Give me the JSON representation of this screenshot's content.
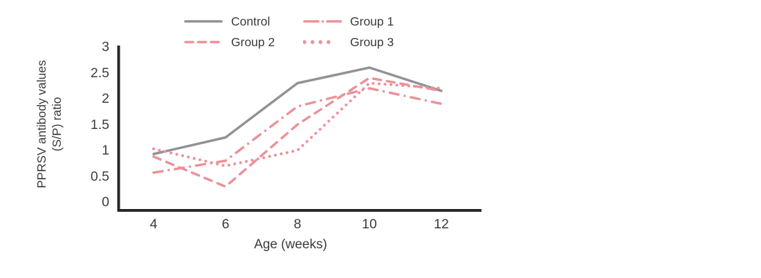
{
  "chart_data": {
    "type": "line",
    "x": [
      4,
      6,
      8,
      10,
      12
    ],
    "xtick_labels": [
      "4",
      "6",
      "8",
      "10",
      "12"
    ],
    "yticks": [
      0,
      0.5,
      1,
      1.5,
      2,
      2.5,
      3
    ],
    "ytick_labels": [
      "0",
      "0.5",
      "1",
      "1.5",
      "2",
      "2.5",
      "3"
    ],
    "ylim": [
      0,
      3
    ],
    "xlabel": "Age (weeks)",
    "ylabel_lines": [
      "PPRSV antibody values",
      "(S/P) ratio"
    ],
    "grid": false,
    "legend_position": "top-center",
    "axis_color": "#262626",
    "text_color": "#3b3b3d",
    "series": [
      {
        "name": "Control",
        "style": "solid",
        "color": "#919196",
        "values": [
          0.93,
          1.25,
          2.3,
          2.6,
          2.15
        ]
      },
      {
        "name": "Group 1",
        "style": "dashdot",
        "color": "#ec9199",
        "values": [
          0.57,
          0.8,
          1.85,
          2.2,
          1.9
        ]
      },
      {
        "name": "Group 2",
        "style": "dashed",
        "color": "#ec9199",
        "values": [
          0.88,
          0.3,
          1.5,
          2.4,
          2.15
        ]
      },
      {
        "name": "Group 3",
        "style": "dotted",
        "color": "#ec9199",
        "values": [
          1.03,
          0.7,
          1.0,
          2.3,
          2.2
        ]
      }
    ]
  }
}
